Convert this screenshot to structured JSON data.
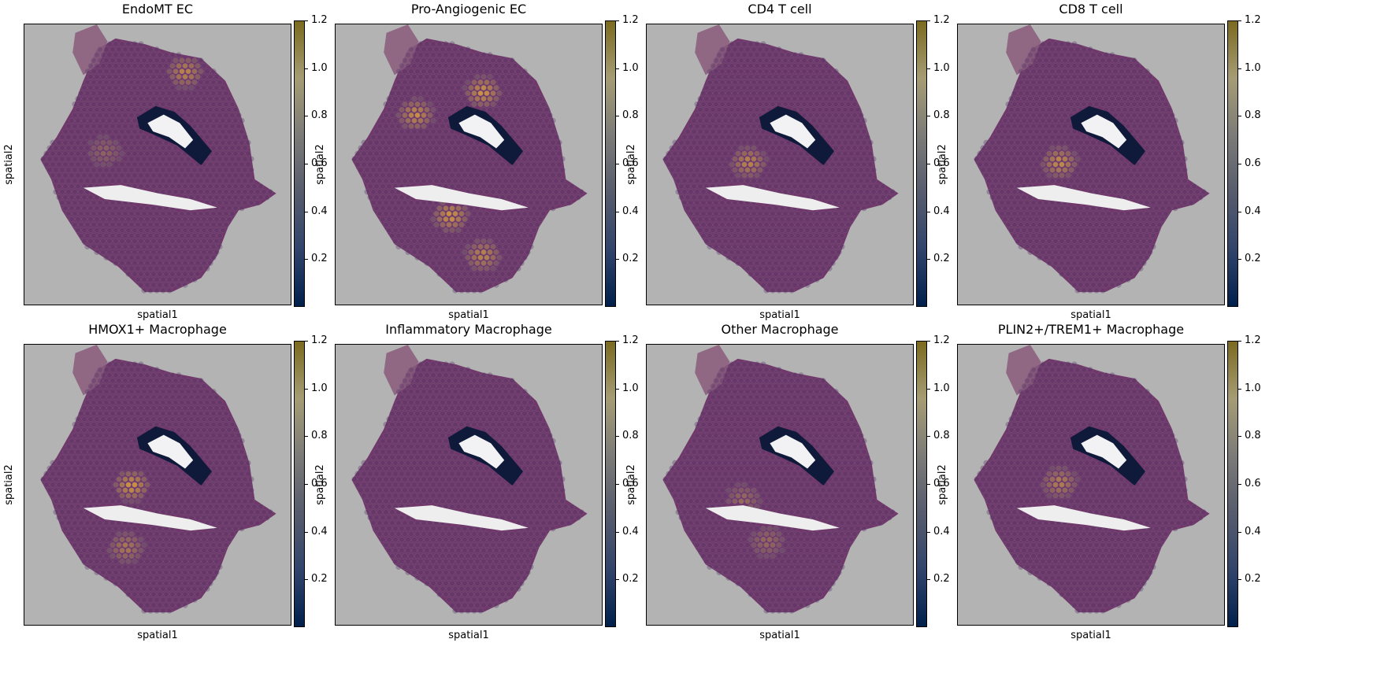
{
  "chart_data": [
    {
      "type": "heatmap",
      "title": "EndoMT EC",
      "xlabel": "spatial1",
      "ylabel": "spatial2",
      "colorbar": {
        "range": [
          0,
          1.2
        ],
        "ticks": [
          "0.2",
          "0.4",
          "0.6",
          "0.8",
          "1.0",
          "1.2"
        ]
      },
      "hotspots": [
        {
          "x": 0.6,
          "y": 0.17,
          "value": 0.9
        },
        {
          "x": 0.3,
          "y": 0.45,
          "value": 0.4
        }
      ]
    },
    {
      "type": "heatmap",
      "title": "Pro-Angiogenic EC",
      "xlabel": "spatial1",
      "ylabel": "spatial2",
      "colorbar": {
        "range": [
          0,
          1.2
        ],
        "ticks": [
          "0.2",
          "0.4",
          "0.6",
          "0.8",
          "1.0",
          "1.2"
        ]
      },
      "hotspots": [
        {
          "x": 0.55,
          "y": 0.24,
          "value": 1.1
        },
        {
          "x": 0.3,
          "y": 0.32,
          "value": 1.0
        },
        {
          "x": 0.43,
          "y": 0.68,
          "value": 1.1
        },
        {
          "x": 0.55,
          "y": 0.82,
          "value": 0.9
        }
      ]
    },
    {
      "type": "heatmap",
      "title": "CD4 T cell",
      "xlabel": "spatial1",
      "ylabel": "spatial2",
      "colorbar": {
        "range": [
          0,
          1.2
        ],
        "ticks": [
          "0.2",
          "0.4",
          "0.6",
          "0.8",
          "1.0",
          "1.2"
        ]
      },
      "hotspots": [
        {
          "x": 0.38,
          "y": 0.49,
          "value": 0.9
        }
      ]
    },
    {
      "type": "heatmap",
      "title": "CD8 T cell",
      "xlabel": "spatial1",
      "ylabel": "spatial2",
      "colorbar": {
        "range": [
          0,
          1.2
        ],
        "ticks": [
          "0.2",
          "0.4",
          "0.6",
          "0.8",
          "1.0",
          "1.2"
        ]
      },
      "hotspots": [
        {
          "x": 0.38,
          "y": 0.49,
          "value": 1.0
        }
      ]
    },
    {
      "type": "heatmap",
      "title": "HMOX1+ Macrophage",
      "xlabel": "spatial1",
      "ylabel": "spatial2",
      "colorbar": {
        "range": [
          0,
          1.2
        ],
        "ticks": [
          "0.2",
          "0.4",
          "0.6",
          "0.8",
          "1.0",
          "1.2"
        ]
      },
      "hotspots": [
        {
          "x": 0.4,
          "y": 0.5,
          "value": 1.1
        },
        {
          "x": 0.38,
          "y": 0.72,
          "value": 0.7
        }
      ]
    },
    {
      "type": "heatmap",
      "title": "Inflammatory Macrophage",
      "xlabel": "spatial1",
      "ylabel": "spatial2",
      "colorbar": {
        "range": [
          0,
          1.2
        ],
        "ticks": [
          "0.2",
          "0.4",
          "0.6",
          "0.8",
          "1.0",
          "1.2"
        ]
      },
      "hotspots": []
    },
    {
      "type": "heatmap",
      "title": "Other Macrophage",
      "xlabel": "spatial1",
      "ylabel": "spatial2",
      "colorbar": {
        "range": [
          0,
          1.2
        ],
        "ticks": [
          "0.2",
          "0.4",
          "0.6",
          "0.8",
          "1.0",
          "1.2"
        ]
      },
      "hotspots": [
        {
          "x": 0.36,
          "y": 0.55,
          "value": 0.5
        },
        {
          "x": 0.45,
          "y": 0.7,
          "value": 0.5
        }
      ]
    },
    {
      "type": "heatmap",
      "title": "PLIN2+/TREM1+ Macrophage",
      "xlabel": "spatial1",
      "ylabel": "spatial2",
      "colorbar": {
        "range": [
          0,
          1.2
        ],
        "ticks": [
          "0.2",
          "0.4",
          "0.6",
          "0.8",
          "1.0",
          "1.2"
        ]
      },
      "hotspots": [
        {
          "x": 0.38,
          "y": 0.49,
          "value": 0.8
        }
      ]
    }
  ],
  "colors": {
    "tissue": "#6a2e64",
    "background": "#b3b3b3",
    "hot": "#f0b030",
    "lumen": "#0f1a3a"
  }
}
